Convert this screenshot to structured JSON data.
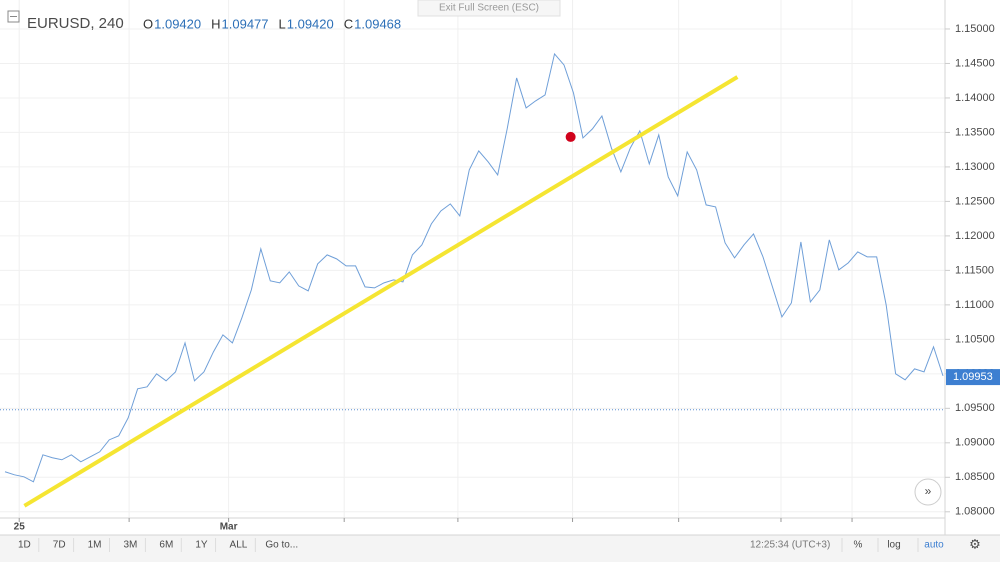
{
  "chart_data": {
    "type": "line",
    "symbol": "EURUSD, 240",
    "ohlc": [
      {
        "key": "O",
        "value": "1.09420"
      },
      {
        "key": "H",
        "value": "1.09477"
      },
      {
        "key": "L",
        "value": "1.09420"
      },
      {
        "key": "C",
        "value": "1.09468"
      }
    ],
    "series": [
      {
        "color": "#6f9fd8",
        "values": [
          1.0858,
          1.08536,
          1.08507,
          1.08435,
          1.08826,
          1.08783,
          1.08754,
          1.08826,
          1.08725,
          1.08797,
          1.0887,
          1.09043,
          1.09101,
          1.09362,
          1.09783,
          1.09812,
          1.1,
          1.09899,
          1.10029,
          1.10449,
          1.09899,
          1.10029,
          1.10319,
          1.10565,
          1.10449,
          1.10812,
          1.11217,
          1.11812,
          1.11348,
          1.11319,
          1.11478,
          1.11275,
          1.11203,
          1.11594,
          1.11725,
          1.11667,
          1.11565,
          1.11565,
          1.11261,
          1.11246,
          1.11319,
          1.11362,
          1.11333,
          1.11725,
          1.1187,
          1.12174,
          1.12362,
          1.12464,
          1.1229,
          1.12957,
          1.13232,
          1.13072,
          1.12884,
          1.13551,
          1.1429,
          1.13855,
          1.13957,
          1.14043,
          1.14638,
          1.14478,
          1.14072,
          1.1342,
          1.13551,
          1.13739,
          1.13275,
          1.12928,
          1.13275,
          1.13522,
          1.13043,
          1.13464,
          1.12855,
          1.1258,
          1.13217,
          1.12957,
          1.12449,
          1.1242,
          1.11899,
          1.11681,
          1.1187,
          1.12029,
          1.11696,
          1.11261,
          1.10826,
          1.11029,
          1.11913,
          1.11043,
          1.11217,
          1.11942,
          1.11507,
          1.11609,
          1.11768,
          1.11696,
          1.11696,
          1.11,
          1.1,
          1.09913,
          1.10072,
          1.10029,
          1.10391,
          1.09971
        ]
      }
    ],
    "last_price": {
      "value": 1.09953,
      "label": "1.09953",
      "color": "#3d7fd1"
    },
    "price_line": 1.0948,
    "trend_line": {
      "x": [
        2.05,
        77.3
      ],
      "y": [
        1.08087,
        1.14304
      ],
      "color": "#f5e532"
    },
    "point": {
      "x": 59.7,
      "y": 1.13435,
      "color": "#d0021b"
    },
    "ylim": [
      1.0791,
      1.1542
    ],
    "yticks": [
      {
        "value": 1.08,
        "label": "1.08000"
      },
      {
        "value": 1.085,
        "label": "1.08500"
      },
      {
        "value": 1.09,
        "label": "1.09000"
      },
      {
        "value": 1.095,
        "label": "1.09500"
      },
      {
        "value": 1.1,
        "label": "1.10000"
      },
      {
        "value": 1.105,
        "label": "1.10500"
      },
      {
        "value": 1.11,
        "label": "1.11000"
      },
      {
        "value": 1.115,
        "label": "1.11500"
      },
      {
        "value": 1.12,
        "label": "1.12000"
      },
      {
        "value": 1.125,
        "label": "1.12500"
      },
      {
        "value": 1.13,
        "label": "1.13000"
      },
      {
        "value": 1.135,
        "label": "1.13500"
      },
      {
        "value": 1.14,
        "label": "1.14000"
      },
      {
        "value": 1.145,
        "label": "1.14500"
      },
      {
        "value": 1.15,
        "label": "1.15000"
      }
    ],
    "xticks": [
      {
        "value": 1.5,
        "label": "25"
      },
      {
        "value": 23.6,
        "label": "Mar"
      }
    ],
    "xgrid": [
      13.1,
      35.8,
      47.8,
      59.9,
      71.1,
      81.9,
      89.4
    ],
    "grid": true
  },
  "fullscreen_hint": "Exit Full Screen (ESC)",
  "toolbar": {
    "ranges": [
      "1D",
      "7D",
      "1M",
      "3M",
      "6M",
      "1Y",
      "ALL"
    ],
    "goto": "Go to...",
    "clock": "12:25:34 (UTC+3)",
    "right": [
      "%",
      "log",
      "auto"
    ]
  }
}
